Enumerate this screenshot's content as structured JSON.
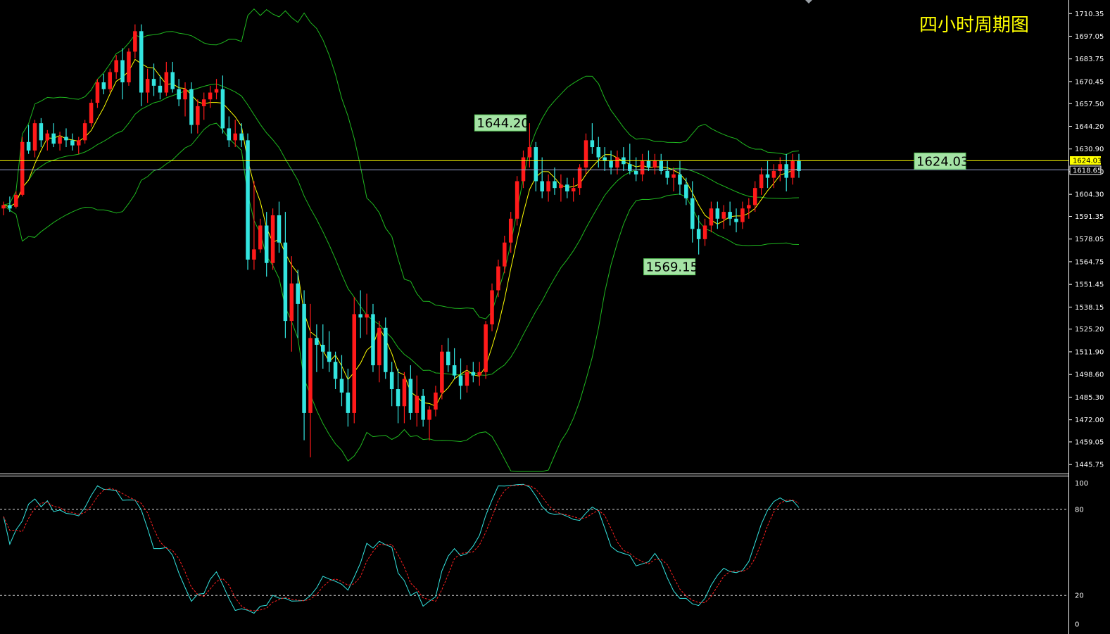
{
  "title": "四小时周期图",
  "colors": {
    "background": "#000000",
    "bull": "#ff1a1a",
    "bear": "#33e5e0",
    "bollinger": "#1fb81f",
    "ma": "#ffff00",
    "current_line": "#ffff00",
    "bid_line": "#a0a8d8",
    "stoch_main": "#33e5e0",
    "stoch_signal": "#ff2020",
    "label_bg": "#000000",
    "label_border": "#5cc95c",
    "label_text": "#000000"
  },
  "chart_data": [
    {
      "type": "candlestick",
      "title": "四小时周期图",
      "ylim": [
        1441.7,
        1715.0
      ],
      "y_ticks": [
        "1710.35",
        "1697.05",
        "1683.75",
        "1670.45",
        "1657.50",
        "1644.20",
        "1630.90",
        "1617.60",
        "1604.30",
        "1591.35",
        "1578.05",
        "1564.75",
        "1551.45",
        "1538.15",
        "1525.20",
        "1511.90",
        "1498.60",
        "1485.30",
        "1472.00",
        "1459.05",
        "1445.75"
      ],
      "current_price": "1624.03",
      "bid_price": "1618.65",
      "annotations": [
        {
          "text": "1644.20",
          "anchor": "high"
        },
        {
          "text": "1569.15",
          "anchor": "low"
        },
        {
          "text": "1624.03",
          "anchor": "current"
        }
      ],
      "candles": [
        [
          1596,
          1600,
          1592,
          1598
        ],
        [
          1598,
          1603,
          1594,
          1596
        ],
        [
          1597,
          1606,
          1596,
          1604
        ],
        [
          1604,
          1638,
          1603,
          1635
        ],
        [
          1635,
          1645,
          1628,
          1630
        ],
        [
          1630,
          1648,
          1626,
          1646
        ],
        [
          1646,
          1649,
          1632,
          1636
        ],
        [
          1636,
          1642,
          1630,
          1640
        ],
        [
          1640,
          1646,
          1632,
          1634
        ],
        [
          1634,
          1641,
          1630,
          1638
        ],
        [
          1638,
          1643,
          1632,
          1636
        ],
        [
          1636,
          1640,
          1630,
          1633
        ],
        [
          1633,
          1638,
          1628,
          1636
        ],
        [
          1636,
          1648,
          1634,
          1646
        ],
        [
          1646,
          1660,
          1644,
          1658
        ],
        [
          1658,
          1672,
          1655,
          1670
        ],
        [
          1670,
          1675,
          1663,
          1666
        ],
        [
          1666,
          1678,
          1664,
          1676
        ],
        [
          1676,
          1686,
          1672,
          1683
        ],
        [
          1683,
          1690,
          1660,
          1670
        ],
        [
          1670,
          1690,
          1668,
          1688
        ],
        [
          1688,
          1704,
          1684,
          1700
        ],
        [
          1700,
          1704,
          1656,
          1664
        ],
        [
          1664,
          1678,
          1658,
          1672
        ],
        [
          1672,
          1681,
          1662,
          1668
        ],
        [
          1668,
          1674,
          1660,
          1664
        ],
        [
          1664,
          1682,
          1662,
          1676
        ],
        [
          1676,
          1682,
          1664,
          1666
        ],
        [
          1666,
          1672,
          1656,
          1660
        ],
        [
          1660,
          1670,
          1650,
          1666
        ],
        [
          1666,
          1670,
          1640,
          1645
        ],
        [
          1645,
          1660,
          1640,
          1656
        ],
        [
          1656,
          1664,
          1648,
          1660
        ],
        [
          1660,
          1668,
          1655,
          1664
        ],
        [
          1664,
          1672,
          1660,
          1666
        ],
        [
          1666,
          1674,
          1640,
          1643
        ],
        [
          1643,
          1650,
          1632,
          1636
        ],
        [
          1636,
          1648,
          1632,
          1640
        ],
        [
          1640,
          1646,
          1632,
          1636
        ],
        [
          1636,
          1640,
          1560,
          1566
        ],
        [
          1566,
          1612,
          1560,
          1572
        ],
        [
          1572,
          1590,
          1570,
          1586
        ],
        [
          1586,
          1594,
          1556,
          1564
        ],
        [
          1564,
          1596,
          1560,
          1592
        ],
        [
          1592,
          1600,
          1570,
          1576
        ],
        [
          1576,
          1594,
          1520,
          1530
        ],
        [
          1530,
          1568,
          1512,
          1552
        ],
        [
          1552,
          1560,
          1520,
          1540
        ],
        [
          1540,
          1548,
          1460,
          1476
        ],
        [
          1476,
          1540,
          1450,
          1520
        ],
        [
          1520,
          1528,
          1500,
          1516
        ],
        [
          1516,
          1528,
          1502,
          1512
        ],
        [
          1512,
          1524,
          1500,
          1506
        ],
        [
          1506,
          1512,
          1490,
          1496
        ],
        [
          1496,
          1510,
          1480,
          1488
        ],
        [
          1488,
          1502,
          1468,
          1476
        ],
        [
          1476,
          1544,
          1470,
          1534
        ],
        [
          1534,
          1548,
          1520,
          1532
        ],
        [
          1532,
          1546,
          1522,
          1534
        ],
        [
          1534,
          1540,
          1500,
          1504
        ],
        [
          1504,
          1530,
          1494,
          1526
        ],
        [
          1526,
          1532,
          1496,
          1500
        ],
        [
          1500,
          1506,
          1480,
          1490
        ],
        [
          1490,
          1502,
          1470,
          1480
        ],
        [
          1480,
          1500,
          1470,
          1496
        ],
        [
          1496,
          1504,
          1472,
          1476
        ],
        [
          1476,
          1498,
          1468,
          1486
        ],
        [
          1486,
          1490,
          1468,
          1472
        ],
        [
          1472,
          1480,
          1460,
          1478
        ],
        [
          1478,
          1492,
          1474,
          1488
        ],
        [
          1488,
          1516,
          1484,
          1512
        ],
        [
          1512,
          1520,
          1500,
          1504
        ],
        [
          1504,
          1514,
          1496,
          1498
        ],
        [
          1498,
          1508,
          1484,
          1492
        ],
        [
          1492,
          1504,
          1488,
          1500
        ],
        [
          1500,
          1506,
          1494,
          1498
        ],
        [
          1498,
          1506,
          1492,
          1500
        ],
        [
          1500,
          1530,
          1496,
          1528
        ],
        [
          1528,
          1552,
          1524,
          1548
        ],
        [
          1548,
          1566,
          1544,
          1562
        ],
        [
          1562,
          1580,
          1558,
          1576
        ],
        [
          1576,
          1594,
          1570,
          1590
        ],
        [
          1590,
          1615,
          1586,
          1612
        ],
        [
          1612,
          1630,
          1608,
          1626
        ],
        [
          1626,
          1646,
          1620,
          1632
        ],
        [
          1632,
          1635,
          1606,
          1612
        ],
        [
          1612,
          1626,
          1602,
          1606
        ],
        [
          1606,
          1616,
          1600,
          1612
        ],
        [
          1612,
          1620,
          1604,
          1608
        ],
        [
          1608,
          1616,
          1600,
          1610
        ],
        [
          1610,
          1614,
          1602,
          1606
        ],
        [
          1606,
          1614,
          1600,
          1608
        ],
        [
          1608,
          1622,
          1604,
          1620
        ],
        [
          1620,
          1640,
          1616,
          1636
        ],
        [
          1636,
          1646,
          1628,
          1632
        ],
        [
          1632,
          1638,
          1620,
          1626
        ],
        [
          1626,
          1632,
          1618,
          1624
        ],
        [
          1624,
          1630,
          1616,
          1620
        ],
        [
          1620,
          1630,
          1616,
          1626
        ],
        [
          1626,
          1632,
          1618,
          1622
        ],
        [
          1622,
          1634,
          1616,
          1618
        ],
        [
          1618,
          1626,
          1612,
          1616
        ],
        [
          1616,
          1628,
          1612,
          1624
        ],
        [
          1624,
          1630,
          1618,
          1620
        ],
        [
          1620,
          1628,
          1616,
          1624
        ],
        [
          1624,
          1628,
          1616,
          1618
        ],
        [
          1618,
          1624,
          1610,
          1614
        ],
        [
          1614,
          1620,
          1606,
          1616
        ],
        [
          1616,
          1624,
          1604,
          1610
        ],
        [
          1610,
          1614,
          1598,
          1602
        ],
        [
          1602,
          1612,
          1576,
          1584
        ],
        [
          1584,
          1592,
          1569,
          1578
        ],
        [
          1578,
          1590,
          1574,
          1586
        ],
        [
          1586,
          1600,
          1582,
          1596
        ],
        [
          1596,
          1600,
          1584,
          1590
        ],
        [
          1590,
          1598,
          1584,
          1594
        ],
        [
          1594,
          1600,
          1586,
          1590
        ],
        [
          1590,
          1596,
          1582,
          1588
        ],
        [
          1588,
          1600,
          1584,
          1596
        ],
        [
          1596,
          1602,
          1590,
          1598
        ],
        [
          1598,
          1612,
          1594,
          1608
        ],
        [
          1608,
          1620,
          1604,
          1616
        ],
        [
          1616,
          1624,
          1608,
          1614
        ],
        [
          1614,
          1622,
          1608,
          1618
        ],
        [
          1618,
          1626,
          1612,
          1622
        ],
        [
          1622,
          1628,
          1606,
          1614
        ],
        [
          1614,
          1628,
          1610,
          1624
        ],
        [
          1624,
          1628,
          1614,
          1618
        ]
      ]
    },
    {
      "type": "line",
      "name": "stochastic",
      "ylim": [
        0,
        100
      ],
      "y_ticks": [
        "100",
        "80",
        "20",
        "0"
      ],
      "levels": [
        80,
        20
      ]
    }
  ]
}
